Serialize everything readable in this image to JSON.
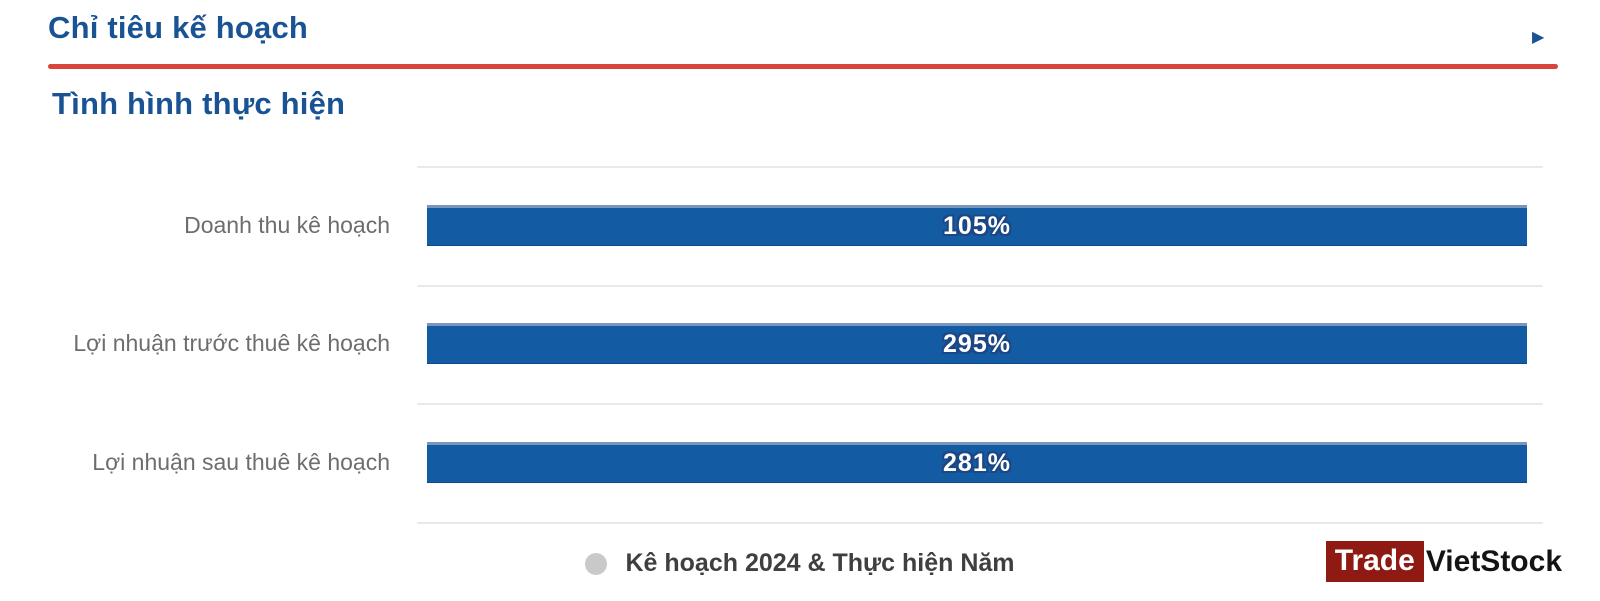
{
  "header": {
    "title": "Chỉ tiêu kế hoạch",
    "arrow_icon": "▶"
  },
  "section": {
    "subtitle": "Tình hình thực hiện"
  },
  "chart_data": {
    "type": "bar",
    "orientation": "horizontal",
    "categories": [
      "Doanh thu kê hoạch",
      "Lợi nhuận trước thuê kê hoạch",
      "Lợi nhuận sau thuê kê hoạch"
    ],
    "values": [
      105,
      295,
      281
    ],
    "value_labels": [
      "105%",
      "295%",
      "281%"
    ],
    "title": "Tình hình thực hiện",
    "xlabel": "",
    "ylabel": "",
    "grid": true,
    "bars_rendered_equal_width": true,
    "bar_color": "#135CA4",
    "legend": {
      "label": "Kê hoạch 2024 & Thực hiện Năm",
      "marker_color": "#C9C9C9",
      "position": "bottom-center"
    }
  },
  "colors": {
    "accent_blue": "#1A5394",
    "divider_red": "#D8453A",
    "bar_blue": "#135CA4",
    "label_gray": "#6D6D6D",
    "gridline_gray": "#E9E9E9",
    "logo_red": "#8E1A13"
  },
  "logo": {
    "trade": "Trade",
    "vietstock": "VietStock"
  }
}
